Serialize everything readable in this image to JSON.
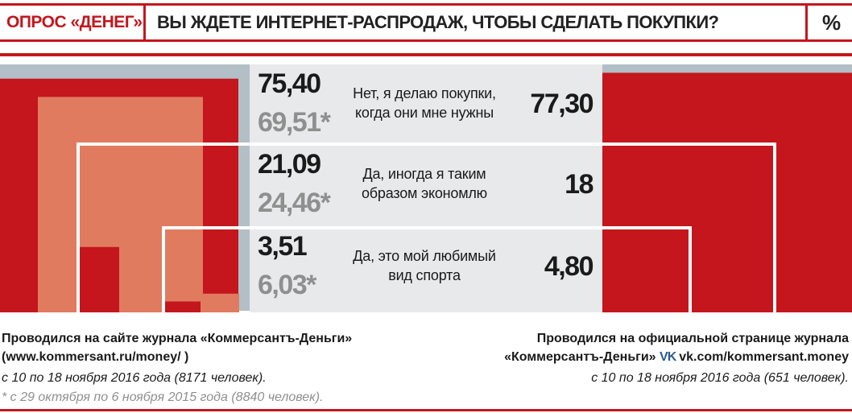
{
  "header": {
    "label": "ОПРОС «ДЕНЕГ»",
    "title": "ВЫ ЖДЕТЕ ИНТЕРНЕТ-РАСПРОДАЖ, ЧТОБЫ СДЕЛАТЬ ПОКУПКИ?",
    "unit": "%"
  },
  "colors": {
    "red": "#c4161c",
    "salmon": "#e07b5f",
    "grey": "#b3bfc6",
    "panel": "#e8e9ea",
    "frame": "#ffffff"
  },
  "chart_data": {
    "type": "bar",
    "title": "ВЫ ЖДЕТЕ ИНТЕРНЕТ-РАСПРОДАЖ, ЧТОБЫ СДЕЛАТЬ ПОКУПКИ?",
    "unit": "%",
    "categories": [
      [
        "Нет, я делаю покупки,",
        "когда они мне нужны"
      ],
      [
        "Да, иногда я таким",
        "образом экономлю"
      ],
      [
        "Да, это мой любимый",
        "вид спорта"
      ]
    ],
    "series": [
      {
        "key": "site_2016",
        "values": [
          75.4,
          21.09,
          3.51
        ],
        "labels": [
          "75,40",
          "21,09",
          "3,51"
        ]
      },
      {
        "key": "site_2015",
        "values": [
          69.51,
          24.46,
          6.03
        ],
        "labels": [
          "69,51*",
          "24,46*",
          "6,03*"
        ]
      },
      {
        "key": "vk_2016",
        "values": [
          77.3,
          18,
          4.8
        ],
        "labels": [
          "77,30",
          "18",
          "4,80"
        ]
      }
    ]
  },
  "notes": {
    "left": {
      "line1": "Проводился на сайте журнала «Коммерсантъ-Деньги»",
      "line2": "(www.kommersant.ru/money/ )",
      "line3": "с 10 по 18 ноября 2016 года (8171 человек).",
      "line4": "* с 29 октября по 6 ноября 2015 года (8840 человек)."
    },
    "right": {
      "line1": "Проводился на официальной странице журнала",
      "line2a": "«Коммерсантъ-Деньги»",
      "vk_icon": "vk-logo-icon",
      "vk_icon_text": "VK",
      "line2b": "vk.com/kommersant.money",
      "line3": "с 10 по 18 ноября 2016 года (651 человек)."
    }
  }
}
